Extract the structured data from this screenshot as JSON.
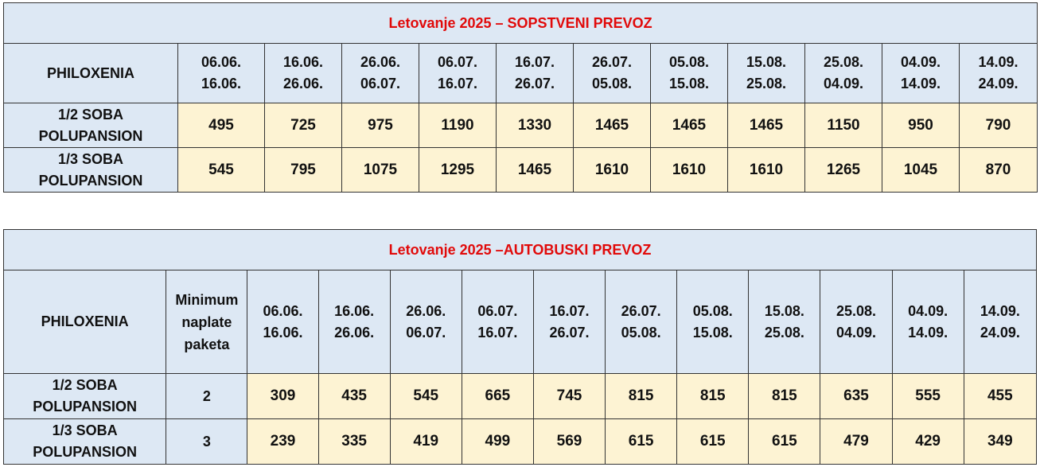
{
  "table1": {
    "title": "Letovanje 2025 – SOPSTVENI PREVOZ",
    "hotel": "PHILOXENIA",
    "periods": [
      {
        "from": "06.06.",
        "to": "16.06."
      },
      {
        "from": "16.06.",
        "to": "26.06."
      },
      {
        "from": "26.06.",
        "to": "06.07."
      },
      {
        "from": "06.07.",
        "to": "16.07."
      },
      {
        "from": "16.07.",
        "to": "26.07."
      },
      {
        "from": "26.07.",
        "to": "05.08."
      },
      {
        "from": "05.08.",
        "to": "15.08."
      },
      {
        "from": "15.08.",
        "to": "25.08."
      },
      {
        "from": "25.08.",
        "to": "04.09."
      },
      {
        "from": "04.09.",
        "to": "14.09."
      },
      {
        "from": "14.09.",
        "to": "24.09."
      }
    ],
    "rows": [
      {
        "label1": "1/2 SOBA",
        "label2": "POLUPANSION",
        "values": [
          "495",
          "725",
          "975",
          "1190",
          "1330",
          "1465",
          "1465",
          "1465",
          "1150",
          "950",
          "790"
        ]
      },
      {
        "label1": "1/3 SOBA",
        "label2": "POLUPANSION",
        "values": [
          "545",
          "795",
          "1075",
          "1295",
          "1465",
          "1610",
          "1610",
          "1610",
          "1265",
          "1045",
          "870"
        ]
      }
    ]
  },
  "table2": {
    "title": "Letovanje 2025 –AUTOBUSKI PREVOZ",
    "hotel": "PHILOXENIA",
    "min_header": [
      "Minimum",
      "naplate",
      "paketa"
    ],
    "periods": [
      {
        "from": "06.06.",
        "to": "16.06."
      },
      {
        "from": "16.06.",
        "to": "26.06."
      },
      {
        "from": "26.06.",
        "to": "06.07."
      },
      {
        "from": "06.07.",
        "to": "16.07."
      },
      {
        "from": "16.07.",
        "to": "26.07."
      },
      {
        "from": "26.07.",
        "to": "05.08."
      },
      {
        "from": "05.08.",
        "to": "15.08."
      },
      {
        "from": "15.08.",
        "to": "25.08."
      },
      {
        "from": "25.08.",
        "to": "04.09."
      },
      {
        "from": "04.09.",
        "to": "14.09."
      },
      {
        "from": "14.09.",
        "to": "24.09."
      }
    ],
    "rows": [
      {
        "label1": "1/2 SOBA",
        "label2": "POLUPANSION",
        "min": "2",
        "values": [
          "309",
          "435",
          "545",
          "665",
          "745",
          "815",
          "815",
          "815",
          "635",
          "555",
          "455"
        ]
      },
      {
        "label1": "1/3 SOBA",
        "label2": "POLUPANSION",
        "min": "3",
        "values": [
          "239",
          "335",
          "419",
          "499",
          "569",
          "615",
          "615",
          "615",
          "479",
          "429",
          "349"
        ]
      }
    ]
  },
  "colors": {
    "header_bg": "#dde8f4",
    "value_bg": "#fdf3d3",
    "title_text": "#e10a0a"
  }
}
